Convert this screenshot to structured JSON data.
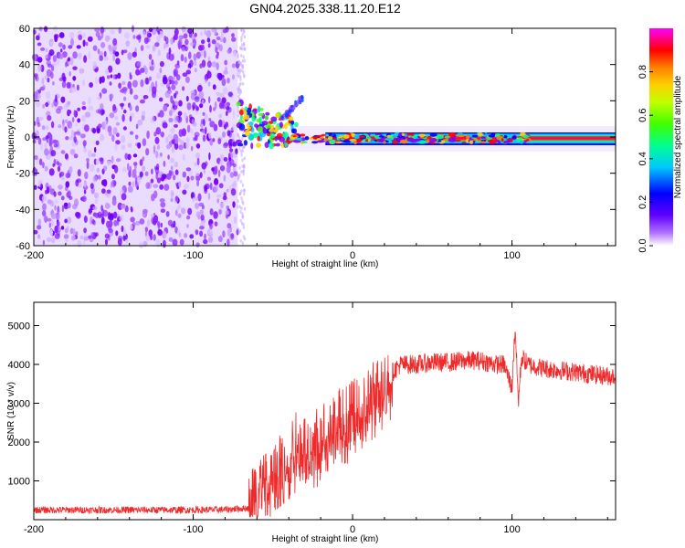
{
  "title": "GN04.2025.338.11.20.E12",
  "chart_data": [
    {
      "type": "heatmap",
      "xlabel": "Height of straight line (km)",
      "ylabel": "Frequency (Hz)",
      "xlim": [
        -200,
        165
      ],
      "ylim": [
        -60,
        60
      ],
      "xticks": [
        -200,
        -100,
        0,
        100
      ],
      "yticks": [
        -60,
        -40,
        -20,
        0,
        20,
        40,
        60
      ],
      "colorbar": {
        "label": "Normalized spectral amplitude",
        "range": [
          0,
          1
        ],
        "ticks": [
          "0.0",
          "0.2",
          "0.4",
          "0.6",
          "0.8"
        ],
        "tick_values": [
          0.0,
          0.2,
          0.4,
          0.6,
          0.8
        ]
      },
      "colormap": [
        "#f2e6ff",
        "#7f00ff",
        "#0000ff",
        "#00c8ff",
        "#00ff80",
        "#80ff00",
        "#ffff00",
        "#ff8000",
        "#ff0000",
        "#ff00ff"
      ],
      "regions": [
        {
          "name": "noise",
          "x": [
            -200,
            -72
          ],
          "freq": [
            -60,
            60
          ],
          "amplitude": 0.05
        },
        {
          "name": "signal-onset",
          "x": [
            -72,
            -35
          ],
          "freq": [
            -5,
            20
          ],
          "amplitude": 0.4
        },
        {
          "name": "carrier",
          "x": [
            -40,
            165
          ],
          "freq": [
            -3,
            1
          ],
          "amplitude": 0.9
        }
      ]
    },
    {
      "type": "line",
      "xlabel": "Height of straight line (km)",
      "ylabel": "SNR (10 * v/v)",
      "xlim": [
        -200,
        165
      ],
      "ylim": [
        0,
        5600
      ],
      "xticks": [
        -200,
        -100,
        0,
        100
      ],
      "yticks": [
        1000,
        2000,
        3000,
        4000,
        5000
      ],
      "series": [
        {
          "color": "#ee2a2a",
          "x": [
            -200,
            -180,
            -160,
            -140,
            -120,
            -100,
            -80,
            -65,
            -60,
            -55,
            -50,
            -45,
            -40,
            -35,
            -30,
            -25,
            -20,
            -15,
            -10,
            -5,
            0,
            5,
            10,
            15,
            20,
            25,
            30,
            40,
            50,
            60,
            70,
            80,
            90,
            95,
            100,
            102,
            104,
            106,
            110,
            120,
            130,
            140,
            150,
            160,
            165
          ],
          "y": [
            250,
            250,
            250,
            250,
            250,
            250,
            260,
            300,
            800,
            1100,
            1300,
            1500,
            1700,
            1900,
            1900,
            1950,
            2100,
            2250,
            2500,
            2600,
            2700,
            2900,
            3100,
            3300,
            3500,
            3800,
            4000,
            4000,
            4050,
            4050,
            4100,
            4100,
            4000,
            4000,
            3400,
            5000,
            3000,
            4200,
            4000,
            3900,
            3850,
            3800,
            3750,
            3700,
            3700
          ]
        }
      ]
    }
  ]
}
